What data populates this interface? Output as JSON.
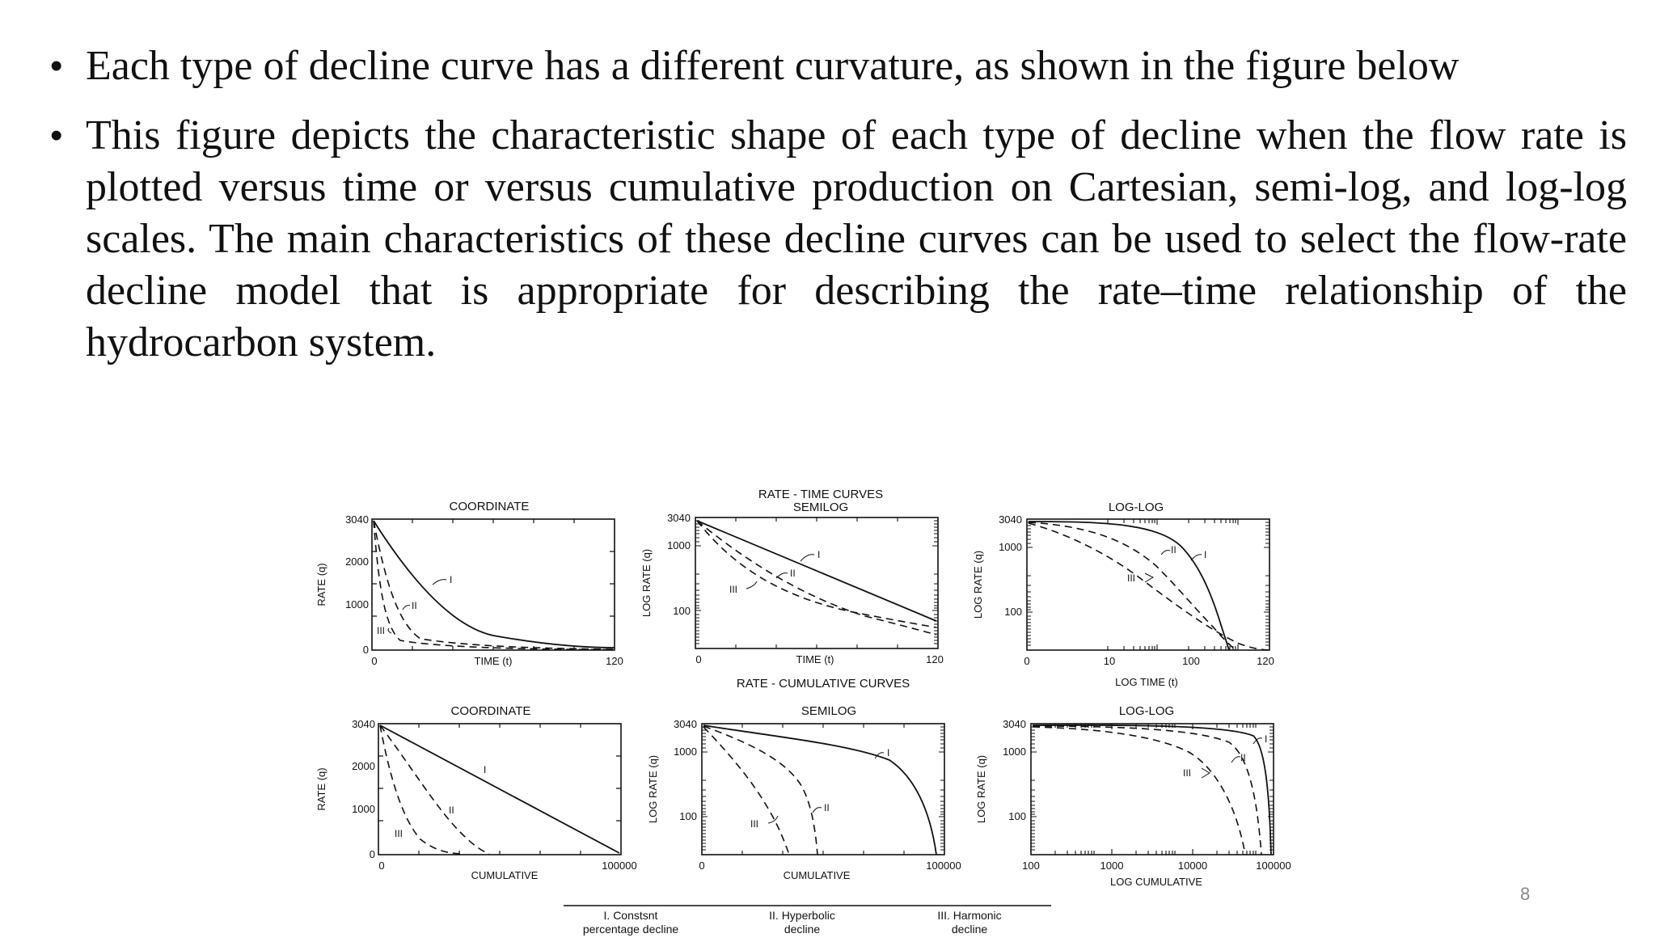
{
  "bullets": [
    "Each type of decline curve has a different curvature, as shown in the figure below",
    "This figure depicts the characteristic shape of each type of decline when the flow rate is plotted versus time or versus cumulative production on Cartesian, semi-log, and log-log scales. The main characteristics of these decline curves can be used to select the flow-rate decline model that is appropriate for describing the rate–time relationship of the hydrocarbon system."
  ],
  "figure": {
    "group_time": "RATE - TIME CURVES",
    "group_cum": "RATE - CUMULATIVE CURVES",
    "titles": [
      "COORDINATE",
      "SEMILOG",
      "LOG-LOG",
      "COORDINATE",
      "SEMILOG",
      "LOG-LOG"
    ],
    "xlabels": [
      "TIME (t)",
      "TIME (t)",
      "LOG TIME (t)",
      "CUMULATIVE",
      "CUMULATIVE",
      "LOG CUMULATIVE"
    ],
    "ylabels": [
      "RATE (q)",
      "LOG RATE (q)",
      "LOG RATE (q)",
      "RATE (q)",
      "LOG RATE (q)",
      "LOG RATE (q)"
    ],
    "yticks_lin": [
      "3040",
      "2000",
      "1000",
      "0"
    ],
    "yticks_log": [
      "3040",
      "1000",
      "100"
    ],
    "xticks_time_lin": [
      "0",
      "120"
    ],
    "xticks_time_loglog": [
      "0",
      "10",
      "100",
      "120"
    ],
    "xticks_cum_lin": [
      "0",
      "100000"
    ],
    "xticks_cum_loglog": [
      "100",
      "1000",
      "10000",
      "100000"
    ],
    "curve_labels": [
      "I",
      "II",
      "III"
    ],
    "legend": [
      [
        "I. Constsnt",
        "percentage decline"
      ],
      [
        "II. Hyperbolic",
        "decline"
      ],
      [
        "III. Harmonic",
        "decline"
      ]
    ]
  },
  "page_number": "8"
}
